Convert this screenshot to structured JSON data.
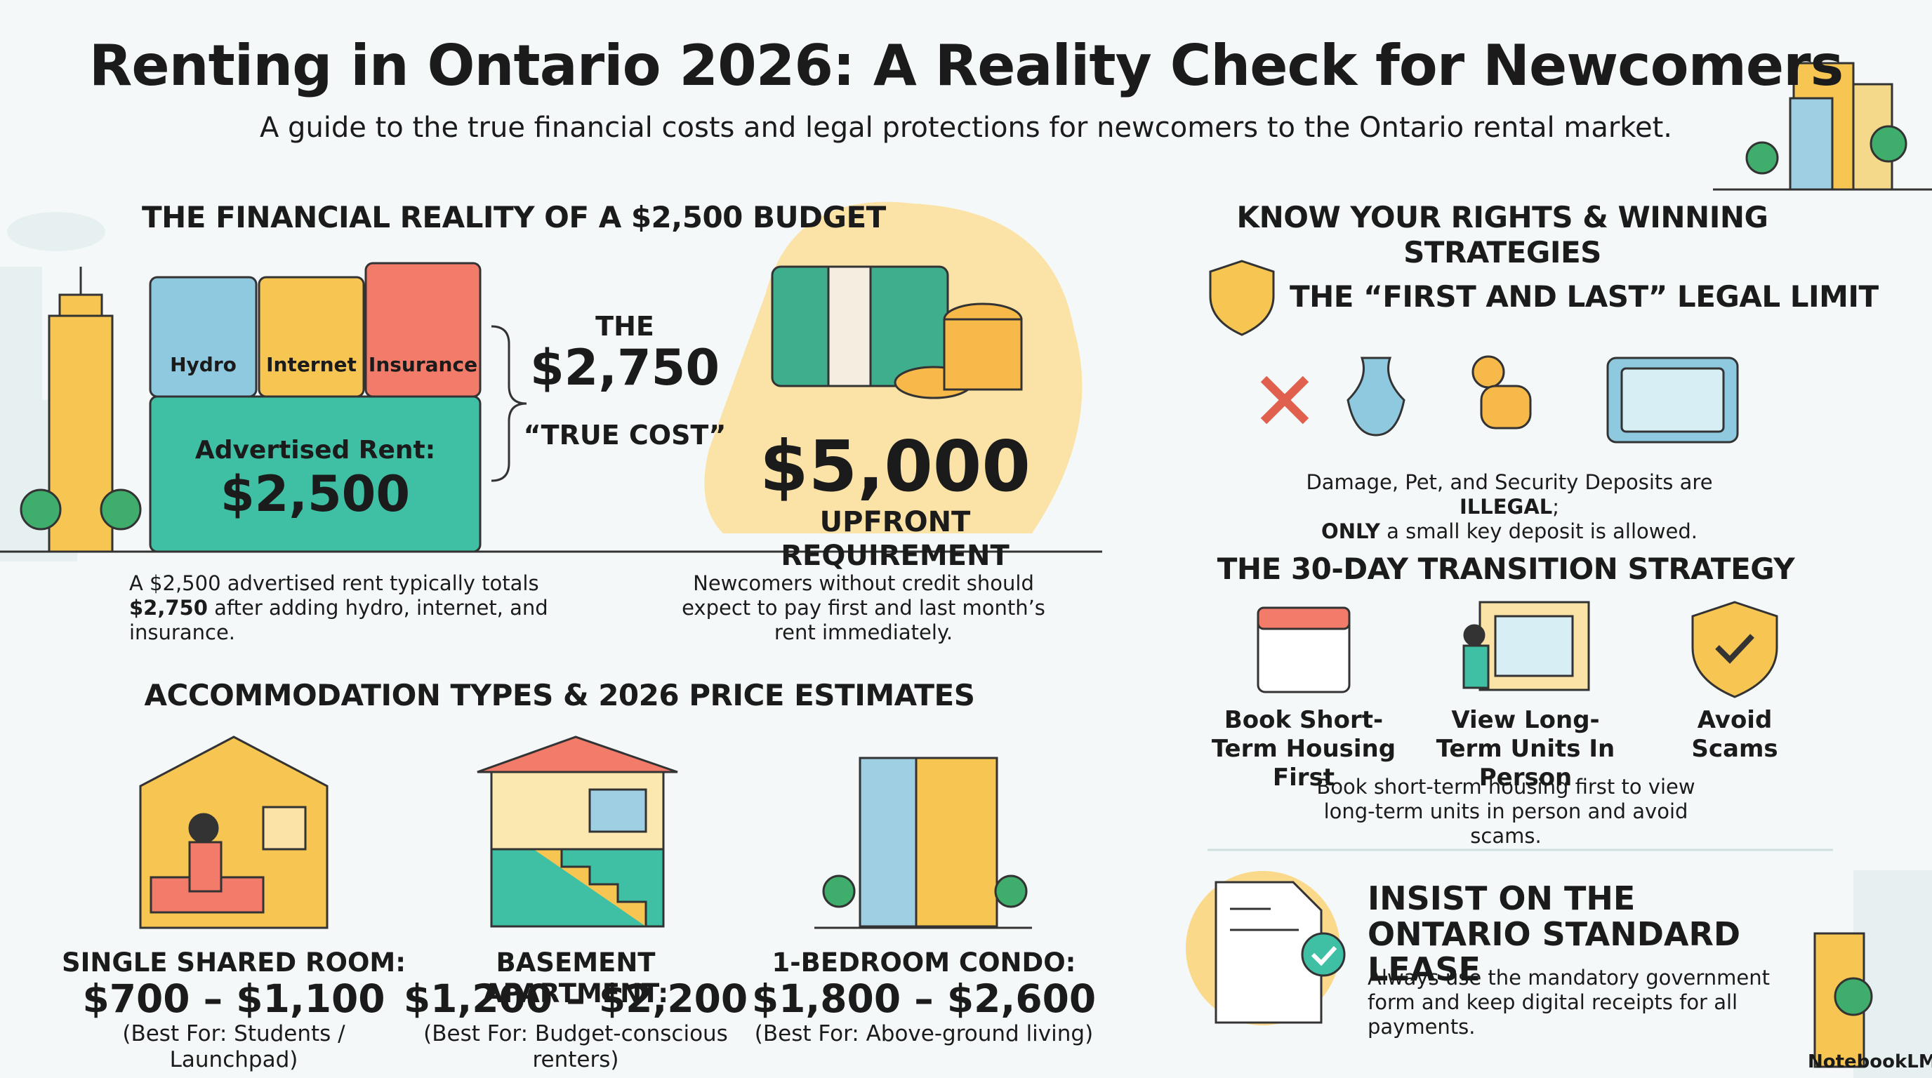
{
  "header": {
    "title": "Renting in Ontario 2026: A Reality Check for Newcomers",
    "subtitle": "A guide to the true financial costs and legal protections for newcomers to the Ontario rental market."
  },
  "financial": {
    "heading": "THE FINANCIAL REALITY OF A $2,500 BUDGET",
    "utilities": [
      "Hydro",
      "Internet",
      "Insurance"
    ],
    "rent_label": "Advertised Rent:",
    "rent_value": "$2,500",
    "true_cost": {
      "line1": "THE",
      "amount": "$2,750",
      "line2": "“TRUE COST”"
    },
    "upfront": {
      "amount": "$5,000",
      "label": "UPFRONT REQUIREMENT"
    },
    "note_left": [
      "A $2,500 advertised rent typically totals ",
      "$2,750",
      " after adding hydro, internet, and insurance."
    ],
    "note_right": "Newcomers without credit should expect to pay first and last month’s rent immediately."
  },
  "accommodation": {
    "heading": "ACCOMMODATION TYPES & 2026 PRICE ESTIMATES",
    "types": [
      {
        "name": "SINGLE SHARED ROOM:",
        "price": "$700 – $1,100",
        "best_for": "(Best For: Students / Launchpad)"
      },
      {
        "name": "BASEMENT APARTMENT:",
        "price": "$1,200 – $2,200",
        "best_for": "(Best For: Budget-conscious renters)"
      },
      {
        "name": "1-BEDROOM CONDO:",
        "price": "$1,800 – $2,600",
        "best_for": "(Best For: Above-ground living)"
      }
    ]
  },
  "rights": {
    "heading": "KNOW YOUR RIGHTS & WINNING STRATEGIES",
    "legal_limit": {
      "title": "THE “FIRST AND LAST” LEGAL LIMIT",
      "note": [
        "Damage, Pet, and Security Deposits are ",
        "ILLEGAL",
        ";",
        "ONLY",
        " a small key deposit is allowed."
      ]
    },
    "transition": {
      "title": "THE 30-DAY TRANSITION STRATEGY",
      "steps": [
        "Book Short-Term Housing First",
        "View Long-Term Units In Person",
        "Avoid Scams"
      ],
      "note": "Book short-term housing first to view long-term units in person and avoid scams."
    },
    "lease": {
      "title": "INSIST ON THE ONTARIO STANDARD LEASE",
      "text": "Always use the mandatory government form and keep digital receipts for all payments."
    }
  },
  "footer": {
    "brand": "NotebookLM"
  }
}
